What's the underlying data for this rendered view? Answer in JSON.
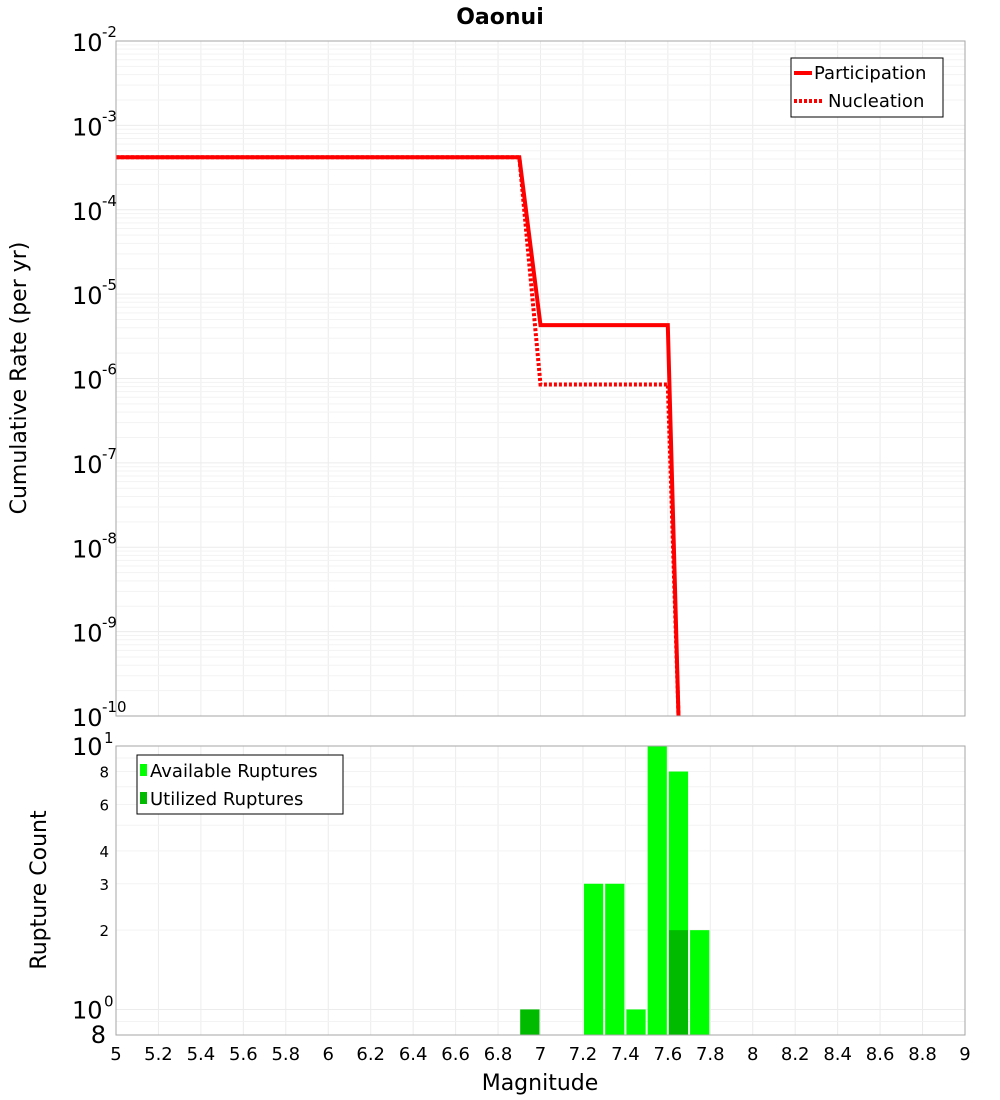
{
  "chart_data": [
    {
      "type": "line",
      "title": "Oaonui",
      "xlabel": "",
      "ylabel": "Cumulative Rate (per yr)",
      "xlim": [
        5,
        9
      ],
      "ylim": [
        1e-10,
        0.01
      ],
      "yscale": "log",
      "grid": true,
      "legend_position": "top-right",
      "y_tick_exponents": [
        "-2",
        "-3",
        "-4",
        "-5",
        "-6",
        "-7",
        "-8",
        "-9",
        "-10"
      ],
      "series": [
        {
          "name": "Participation",
          "style": "solid",
          "color": "#ff0000",
          "x": [
            5.0,
            6.9,
            7.0,
            7.6,
            7.65
          ],
          "y": [
            0.00042,
            0.00042,
            4.3e-06,
            4.3e-06,
            1e-10
          ]
        },
        {
          "name": "Nucleation",
          "style": "dotted",
          "color": "#ff0000",
          "x": [
            5.0,
            6.9,
            7.0,
            7.6,
            7.65
          ],
          "y": [
            0.00042,
            0.00042,
            8.5e-07,
            8.5e-07,
            1e-10
          ]
        }
      ]
    },
    {
      "type": "bar",
      "title": "",
      "xlabel": "Magnitude",
      "ylabel": "Rupture Count",
      "xlim": [
        5,
        9
      ],
      "ylim": [
        0.8,
        10
      ],
      "yscale": "log",
      "grid": true,
      "legend_position": "top-left",
      "x_ticks": [
        "5",
        "5.2",
        "5.4",
        "5.6",
        "5.8",
        "6",
        "6.2",
        "6.4",
        "6.6",
        "6.8",
        "7",
        "7.2",
        "7.4",
        "7.6",
        "7.8",
        "8",
        "8.2",
        "8.4",
        "8.6",
        "8.8",
        "9"
      ],
      "y_tick_labels": {
        "top_base": "10",
        "top_exp": "1",
        "bottom_base": "10",
        "bottom_exp": "0",
        "bottom_edge": "8",
        "minor": [
          "8",
          "6",
          "4",
          "3",
          "2"
        ]
      },
      "series": [
        {
          "name": "Available Ruptures",
          "color": "#00ff00",
          "x": [
            6.95,
            7.25,
            7.35,
            7.45,
            7.55,
            7.65,
            7.75
          ],
          "values": [
            1,
            3,
            3,
            1,
            10,
            8,
            2
          ]
        },
        {
          "name": "Utilized Ruptures",
          "color": "#00bb00",
          "x": [
            6.95,
            7.65
          ],
          "values": [
            1,
            2
          ]
        }
      ]
    }
  ]
}
